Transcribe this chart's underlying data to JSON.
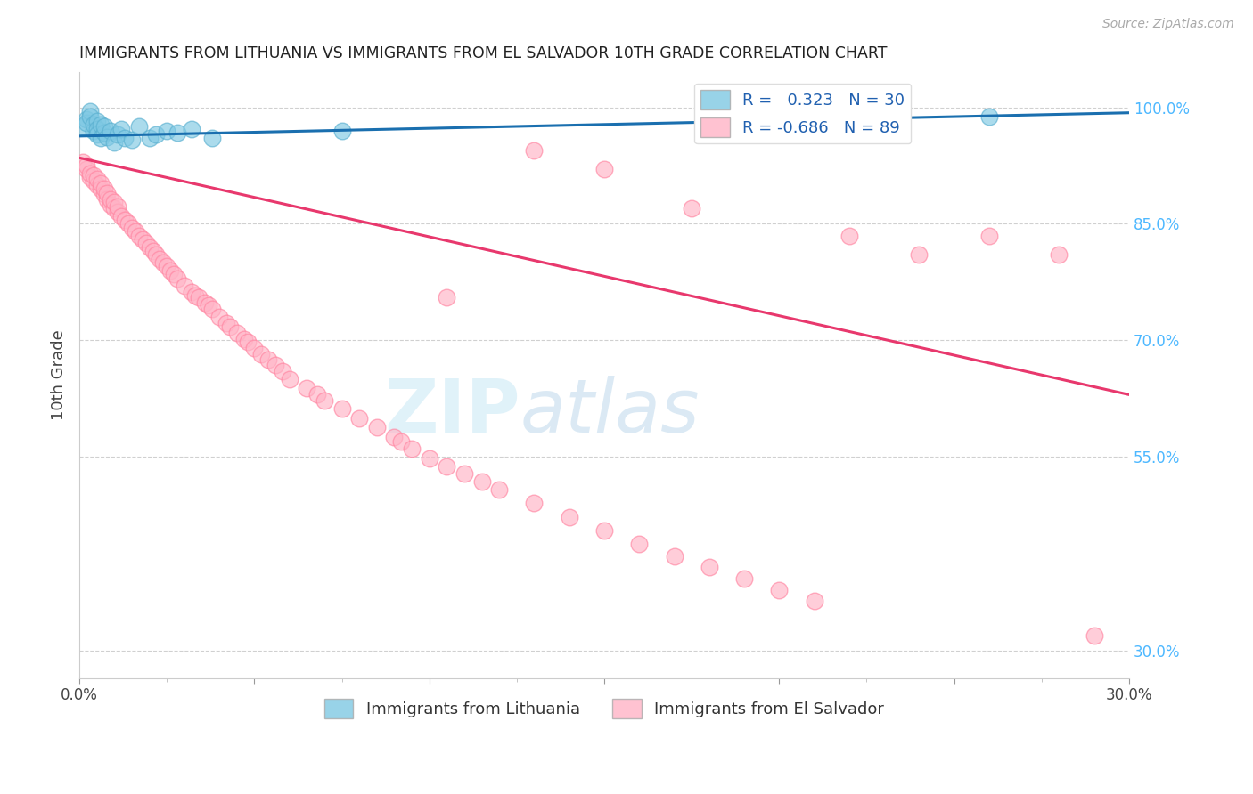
{
  "title": "IMMIGRANTS FROM LITHUANIA VS IMMIGRANTS FROM EL SALVADOR 10TH GRADE CORRELATION CHART",
  "source": "Source: ZipAtlas.com",
  "ylabel": "10th Grade",
  "right_yticks": [
    "100.0%",
    "85.0%",
    "70.0%",
    "55.0%",
    "30.0%"
  ],
  "right_ytick_values": [
    1.0,
    0.85,
    0.7,
    0.55,
    0.3
  ],
  "xmin": 0.0,
  "xmax": 0.3,
  "ymin": 0.265,
  "ymax": 1.045,
  "legend1_label": "R =   0.323   N = 30",
  "legend2_label": "R = -0.686   N = 89",
  "blue_color": "#7ec8e3",
  "pink_color": "#ffb3c6",
  "blue_edge_color": "#5ab0d0",
  "pink_edge_color": "#ff85a1",
  "blue_line_color": "#1a6faf",
  "pink_line_color": "#e8386d",
  "blue_scatter_x": [
    0.001,
    0.002,
    0.002,
    0.003,
    0.003,
    0.004,
    0.004,
    0.005,
    0.005,
    0.005,
    0.006,
    0.006,
    0.007,
    0.007,
    0.008,
    0.009,
    0.01,
    0.011,
    0.012,
    0.013,
    0.015,
    0.017,
    0.02,
    0.022,
    0.025,
    0.028,
    0.032,
    0.038,
    0.075,
    0.26
  ],
  "blue_scatter_y": [
    0.975,
    0.985,
    0.98,
    0.995,
    0.988,
    0.97,
    0.978,
    0.982,
    0.972,
    0.965,
    0.978,
    0.96,
    0.968,
    0.975,
    0.962,
    0.97,
    0.955,
    0.965,
    0.972,
    0.96,
    0.958,
    0.975,
    0.96,
    0.965,
    0.97,
    0.968,
    0.972,
    0.96,
    0.97,
    0.988
  ],
  "pink_scatter_x": [
    0.001,
    0.002,
    0.002,
    0.003,
    0.003,
    0.004,
    0.004,
    0.005,
    0.005,
    0.006,
    0.006,
    0.007,
    0.007,
    0.008,
    0.008,
    0.009,
    0.009,
    0.01,
    0.01,
    0.011,
    0.011,
    0.012,
    0.013,
    0.014,
    0.015,
    0.016,
    0.017,
    0.018,
    0.019,
    0.02,
    0.021,
    0.022,
    0.023,
    0.024,
    0.025,
    0.026,
    0.027,
    0.028,
    0.03,
    0.032,
    0.033,
    0.034,
    0.036,
    0.037,
    0.038,
    0.04,
    0.042,
    0.043,
    0.045,
    0.047,
    0.048,
    0.05,
    0.052,
    0.054,
    0.056,
    0.058,
    0.06,
    0.065,
    0.068,
    0.07,
    0.075,
    0.08,
    0.085,
    0.09,
    0.092,
    0.095,
    0.1,
    0.105,
    0.11,
    0.115,
    0.12,
    0.13,
    0.14,
    0.15,
    0.16,
    0.17,
    0.18,
    0.19,
    0.2,
    0.21,
    0.175,
    0.15,
    0.22,
    0.24,
    0.26,
    0.28,
    0.13,
    0.105,
    0.29
  ],
  "pink_scatter_y": [
    0.93,
    0.92,
    0.925,
    0.91,
    0.915,
    0.905,
    0.912,
    0.9,
    0.908,
    0.895,
    0.902,
    0.888,
    0.895,
    0.882,
    0.89,
    0.875,
    0.882,
    0.87,
    0.878,
    0.865,
    0.872,
    0.86,
    0.855,
    0.85,
    0.845,
    0.84,
    0.835,
    0.83,
    0.825,
    0.82,
    0.815,
    0.81,
    0.805,
    0.8,
    0.795,
    0.79,
    0.785,
    0.78,
    0.77,
    0.762,
    0.758,
    0.755,
    0.748,
    0.745,
    0.74,
    0.73,
    0.722,
    0.718,
    0.71,
    0.702,
    0.698,
    0.69,
    0.682,
    0.675,
    0.668,
    0.66,
    0.65,
    0.638,
    0.63,
    0.622,
    0.612,
    0.6,
    0.588,
    0.575,
    0.57,
    0.56,
    0.548,
    0.538,
    0.528,
    0.518,
    0.508,
    0.49,
    0.472,
    0.455,
    0.438,
    0.422,
    0.408,
    0.393,
    0.378,
    0.365,
    0.87,
    0.92,
    0.835,
    0.81,
    0.835,
    0.81,
    0.945,
    0.755,
    0.32
  ],
  "watermark_text": "ZIPatlas",
  "background_color": "#ffffff",
  "grid_color": "#d0d0d0",
  "title_color": "#222222",
  "right_axis_color": "#4db8ff",
  "xtick_positions": [
    0.0,
    0.05,
    0.1,
    0.15,
    0.2,
    0.25,
    0.3
  ],
  "xtick_labels_show": [
    "0.0%",
    "",
    "",
    "",
    "",
    "",
    "30.0%"
  ]
}
